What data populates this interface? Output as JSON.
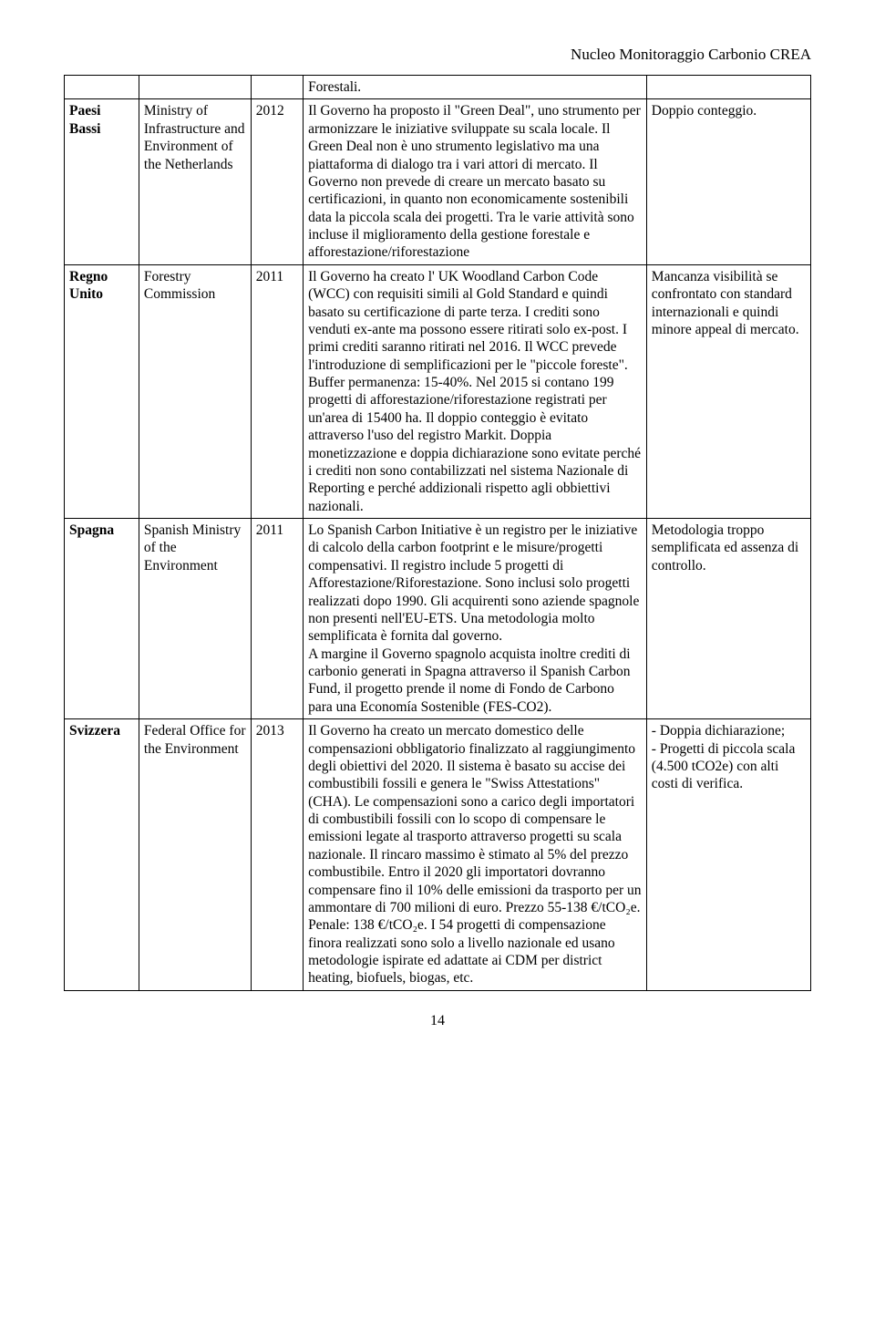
{
  "header": "Nucleo Monitoraggio Carbonio CREA",
  "footer": "14",
  "row0": {
    "c4": "Forestali."
  },
  "row1": {
    "c1": "Paesi Bassi",
    "c2": "Ministry of Infrastructure and Environment of the Netherlands",
    "c3": "2012",
    "c4": "Il Governo ha proposto il \"Green Deal\", uno strumento per armonizzare le iniziative sviluppate su scala locale. Il Green Deal non è uno strumento legislativo ma una piattaforma di dialogo tra i vari attori di mercato. Il Governo non prevede di creare un mercato basato su certificazioni, in quanto non economicamente sostenibili data la piccola scala dei progetti. Tra le varie attività sono incluse il miglioramento della gestione forestale e afforestazione/riforestazione",
    "c5": "Doppio conteggio."
  },
  "row2": {
    "c1": "Regno Unito",
    "c2": "Forestry Commission",
    "c3": "2011",
    "c4": "Il Governo ha creato l' UK Woodland Carbon Code (WCC) con requisiti simili al Gold Standard e quindi basato su certificazione di parte terza. I crediti sono venduti ex-ante ma possono essere ritirati solo ex-post. I primi crediti saranno ritirati nel 2016. Il WCC prevede l'introduzione di semplificazioni per le \"piccole foreste\". Buffer permanenza: 15-40%. Nel 2015 si contano 199 progetti di afforestazione/riforestazione registrati per un'area di 15400 ha. Il doppio conteggio è evitato attraverso l'uso del registro Markit. Doppia monetizzazione e doppia dichiarazione sono evitate perché i crediti non sono contabilizzati nel sistema Nazionale di Reporting e perché addizionali rispetto agli obbiettivi nazionali.",
    "c5": "Mancanza visibilità se confrontato con standard internazionali e quindi minore appeal di mercato."
  },
  "row3": {
    "c1": "Spagna",
    "c2": "Spanish Ministry of the Environment",
    "c3": "2011",
    "c4": "Lo Spanish Carbon Initiative è un registro per le iniziative di calcolo della carbon footprint e le misure/progetti compensativi. Il registro include 5 progetti di Afforestazione/Riforestazione. Sono inclusi solo progetti realizzati dopo 1990. Gli acquirenti sono aziende spagnole non presenti nell'EU-ETS. Una metodologia molto semplificata è fornita dal governo.\nA margine il Governo spagnolo acquista inoltre crediti di carbonio generati in Spagna attraverso il Spanish Carbon Fund, il progetto prende il nome di Fondo de Carbono para una Economía Sostenible (FES-CO2).",
    "c5": "Metodologia troppo semplificata ed assenza di controllo."
  },
  "row4": {
    "c1": "Svizzera",
    "c2": "Federal Office for the Environment",
    "c3": "2013",
    "c4": "Il Governo ha creato un mercato domestico delle compensazioni obbligatorio finalizzato al raggiungimento degli obiettivi del 2020. Il sistema è basato su accise dei combustibili fossili e genera le \"Swiss Attestations\" (CHA). Le compensazioni sono a carico degli importatori di combustibili fossili con lo scopo di compensare le emissioni legate al trasporto attraverso progetti su scala nazionale. Il rincaro massimo è stimato al 5% del prezzo combustibile. Entro il 2020 gli importatori dovranno compensare fino il 10% delle emissioni da trasporto per un ammontare di 700 milioni di euro. Prezzo 55-138 €/tCO₂e. Penale: 138 €/tCO₂e. I 54 progetti di compensazione finora realizzati sono solo a livello nazionale ed usano metodologie ispirate ed adattate ai CDM per district heating, biofuels, biogas, etc.",
    "c5": "- Doppia dichiarazione;\n- Progetti di piccola scala (4.500 tCO2e) con alti costi di verifica."
  }
}
